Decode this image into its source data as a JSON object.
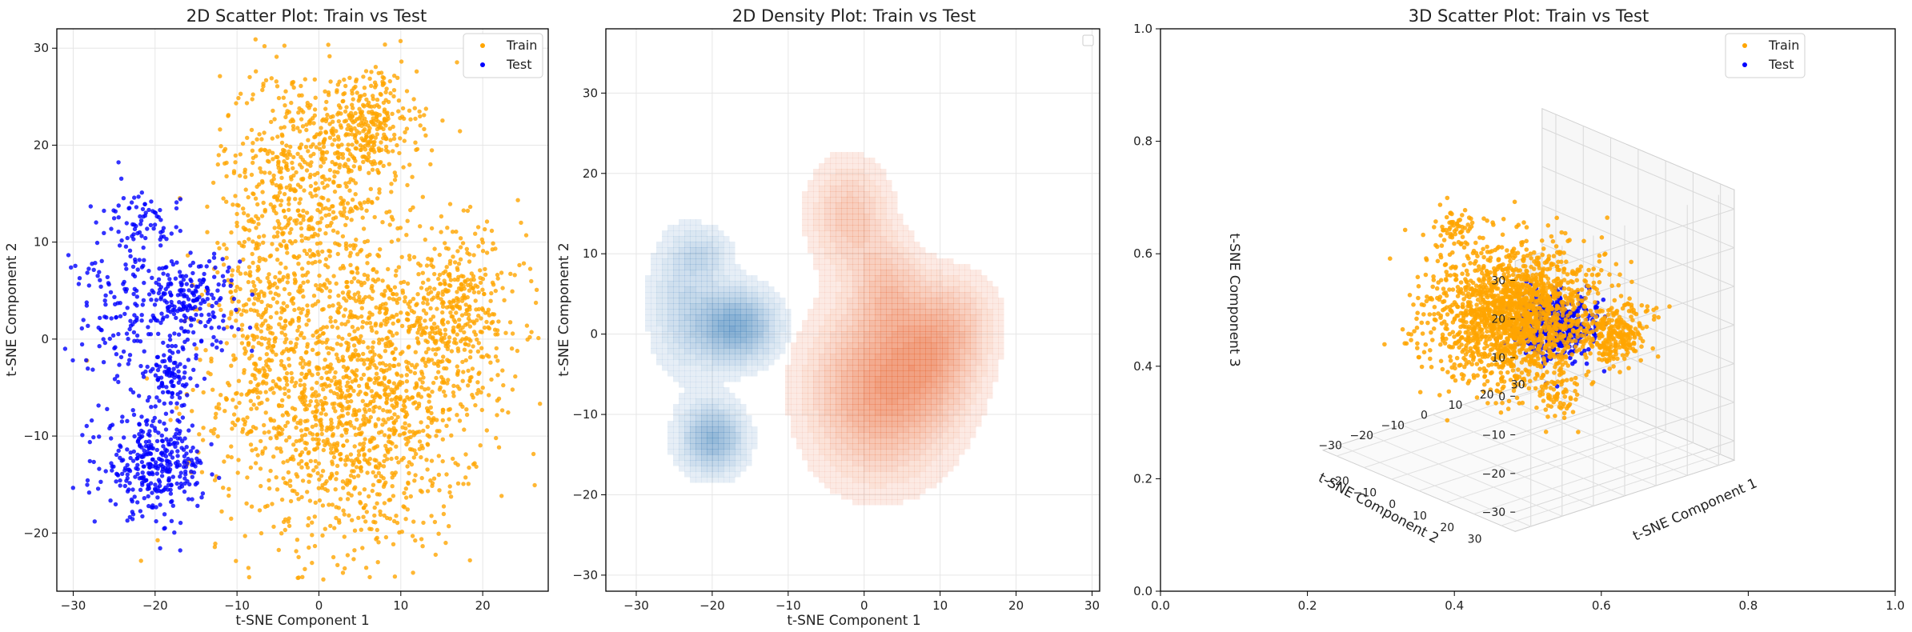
{
  "figure": {
    "background": "#ffffff"
  },
  "colors": {
    "train": "#FFA500",
    "test": "#0000FF",
    "train_density": "#E8602C",
    "test_density": "#3A7DB8",
    "grid": "#e6e6e6",
    "axis": "#000000"
  },
  "chart_data": [
    {
      "type": "scatter",
      "title": "2D Scatter Plot: Train vs Test",
      "xlabel": "t-SNE Component 1",
      "ylabel": "t-SNE Component 2",
      "xlim": [
        -32,
        28
      ],
      "ylim": [
        -26,
        32
      ],
      "xticks": [
        -30,
        -20,
        -10,
        0,
        10,
        20
      ],
      "yticks": [
        -20,
        -10,
        0,
        10,
        20,
        30
      ],
      "grid": true,
      "legend": {
        "position": "top-right",
        "entries": [
          "Train",
          "Test"
        ]
      },
      "series": [
        {
          "name": "Train",
          "color": "#FFA500",
          "marker_count_approx": 3000,
          "clusters": [
            {
              "cx": 4,
              "cy": -6,
              "sx": 8,
              "sy": 8,
              "n": 1600
            },
            {
              "cx": -2,
              "cy": 16,
              "sx": 5,
              "sy": 6,
              "n": 600
            },
            {
              "cx": 6,
              "cy": 22,
              "sx": 3,
              "sy": 3,
              "n": 300
            },
            {
              "cx": 17,
              "cy": 3,
              "sx": 4,
              "sy": 4,
              "n": 350
            },
            {
              "cx": -7,
              "cy": 2,
              "sx": 3,
              "sy": 4,
              "n": 150
            }
          ]
        },
        {
          "name": "Test",
          "color": "#0000FF",
          "marker_count_approx": 850,
          "clusters": [
            {
              "cx": -20,
              "cy": -13,
              "sx": 3,
              "sy": 2.5,
              "n": 330
            },
            {
              "cx": -16,
              "cy": 4,
              "sx": 3,
              "sy": 2.5,
              "n": 220
            },
            {
              "cx": -24,
              "cy": 2,
              "sx": 3,
              "sy": 6,
              "n": 160
            },
            {
              "cx": -21,
              "cy": 12,
              "sx": 2,
              "sy": 1.5,
              "n": 60
            },
            {
              "cx": -18,
              "cy": -4,
              "sx": 1.5,
              "sy": 1.5,
              "n": 80
            }
          ]
        }
      ]
    },
    {
      "type": "area",
      "subtype": "kde-contour",
      "title": "2D Density Plot: Train vs Test",
      "xlabel": "t-SNE Component 1",
      "ylabel": "t-SNE Component 2",
      "xlim": [
        -34,
        31
      ],
      "ylim": [
        -32,
        38
      ],
      "xticks": [
        -30,
        -20,
        -10,
        0,
        10,
        20,
        30
      ],
      "yticks": [
        -30,
        -20,
        -10,
        0,
        10,
        20,
        30
      ],
      "grid": true,
      "legend": {
        "position": "top-right",
        "entries": []
      },
      "series": [
        {
          "name": "Train",
          "color": "#E8602C",
          "components": [
            {
              "cx": 2,
              "cy": -7,
              "sx": 6,
              "sy": 7,
              "w": 1.0
            },
            {
              "cx": 9,
              "cy": -3,
              "sx": 4,
              "sy": 5,
              "w": 0.55
            },
            {
              "cx": -2,
              "cy": 15,
              "sx": 3.5,
              "sy": 4.5,
              "w": 0.55
            },
            {
              "cx": 3,
              "cy": 6,
              "sx": 3,
              "sy": 4,
              "w": 0.45
            },
            {
              "cx": 12,
              "cy": 2,
              "sx": 4,
              "sy": 4,
              "w": 0.35
            }
          ]
        },
        {
          "name": "Test",
          "color": "#3A7DB8",
          "components": [
            {
              "cx": -17,
              "cy": 1,
              "sx": 3.5,
              "sy": 3,
              "w": 1.0
            },
            {
              "cx": -20,
              "cy": -13,
              "sx": 2.8,
              "sy": 2.8,
              "w": 0.85
            },
            {
              "cx": -24,
              "cy": 4,
              "sx": 3,
              "sy": 6,
              "w": 0.35
            },
            {
              "cx": -21,
              "cy": 10,
              "sx": 2.5,
              "sy": 2,
              "w": 0.3
            }
          ]
        }
      ]
    },
    {
      "type": "scatter",
      "subtype": "3d",
      "title": "3D Scatter Plot: Train vs Test",
      "xlabel": "t-SNE Component 1",
      "ylabel": "t-SNE Component 2",
      "zlabel": "t-SNE Component 3",
      "xticks": [
        -30,
        -20,
        -10,
        0,
        10,
        20,
        30
      ],
      "yticks": [
        -20,
        -10,
        0,
        10,
        20,
        30
      ],
      "zticks": [
        -30,
        -20,
        -10,
        0,
        10,
        20,
        30
      ],
      "xlim": [
        -35,
        35
      ],
      "ylim": [
        -30,
        35
      ],
      "zlim": [
        -32,
        32
      ],
      "outer_axes": {
        "xticks": [
          0.0,
          0.2,
          0.4,
          0.6,
          0.8,
          1.0
        ],
        "yticks": [
          0.0,
          0.2,
          0.4,
          0.6,
          0.8,
          1.0
        ]
      },
      "legend": {
        "position": "top-right",
        "entries": [
          "Train",
          "Test"
        ]
      },
      "series": [
        {
          "name": "Train",
          "color": "#FFA500",
          "clusters": [
            {
              "cx": 0,
              "cy": -5,
              "cz": 0,
              "s": 10,
              "n": 1800
            },
            {
              "cx": 10,
              "cy": 20,
              "cz": 0,
              "s": 4,
              "n": 250
            },
            {
              "cx": -10,
              "cy": -15,
              "cz": 22,
              "s": 3,
              "n": 60
            },
            {
              "cx": 10,
              "cy": 0,
              "cz": -22,
              "s": 3,
              "n": 60
            }
          ]
        },
        {
          "name": "Test",
          "color": "#0000FF",
          "clusters": [
            {
              "cx": -10,
              "cy": 22,
              "cz": 8,
              "s": 5,
              "n": 450
            }
          ]
        }
      ]
    }
  ]
}
